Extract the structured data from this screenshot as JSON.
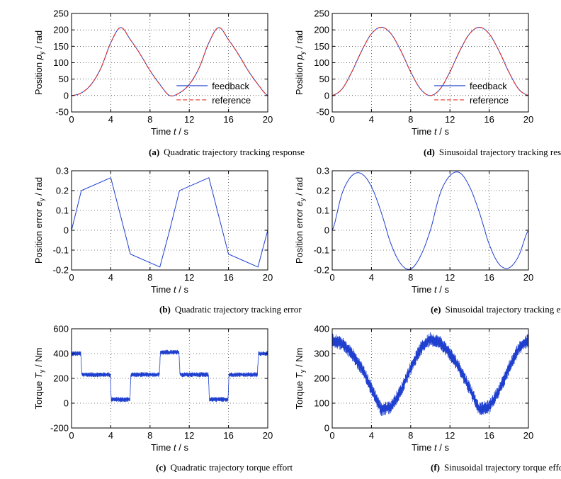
{
  "chart_data": [
    {
      "id": "a",
      "type": "line",
      "caption_letter": "(a)",
      "caption": "Quadratic trajectory tracking response",
      "xlabel_pre": "Time ",
      "xlabel_var": "t",
      "xlabel_post": " / s",
      "ylabel_pre": "Position ",
      "ylabel_var": "p",
      "ylabel_sub": "y",
      "ylabel_post": " / rad",
      "xlim": [
        0,
        20
      ],
      "ylim": [
        -50,
        250
      ],
      "xticks": [
        0,
        4,
        8,
        12,
        16,
        20
      ],
      "yticks": [
        -50,
        0,
        50,
        100,
        150,
        200,
        250
      ],
      "grid": true,
      "legend_position": "lower-right",
      "series": [
        {
          "name": "feedback",
          "color": "#1f3fcf",
          "style": "solid",
          "x": [
            0,
            1,
            2,
            3,
            4,
            5,
            6,
            7,
            8,
            9,
            10,
            11,
            12,
            13,
            14,
            15,
            16,
            17,
            18,
            19,
            20
          ],
          "y": [
            0,
            8,
            34,
            84,
            161,
            207,
            170,
            126,
            76,
            34,
            0,
            8,
            34,
            84,
            161,
            207,
            170,
            126,
            76,
            34,
            0
          ]
        },
        {
          "name": "reference",
          "color": "#e0342c",
          "style": "dashed",
          "x": [
            0,
            1,
            2,
            3,
            4,
            5,
            6,
            7,
            8,
            9,
            10,
            11,
            12,
            13,
            14,
            15,
            16,
            17,
            18,
            19,
            20
          ],
          "y": [
            0,
            8,
            34,
            84,
            161,
            207,
            170,
            126,
            76,
            34,
            0,
            8,
            34,
            84,
            161,
            207,
            170,
            126,
            76,
            34,
            0
          ]
        }
      ]
    },
    {
      "id": "d",
      "type": "line",
      "caption_letter": "(d)",
      "caption": "Sinusoidal trajectory tracking response",
      "xlabel_pre": "Time ",
      "xlabel_var": "t",
      "xlabel_post": " / s",
      "ylabel_pre": "Position ",
      "ylabel_var": "p",
      "ylabel_sub": "y",
      "ylabel_post": " / rad",
      "xlim": [
        0,
        20
      ],
      "ylim": [
        -50,
        250
      ],
      "xticks": [
        0,
        4,
        8,
        12,
        16,
        20
      ],
      "yticks": [
        -50,
        0,
        50,
        100,
        150,
        200,
        250
      ],
      "grid": true,
      "legend_position": "lower-right",
      "series": [
        {
          "name": "feedback",
          "color": "#1f3fcf",
          "style": "solid",
          "x": [
            0,
            1,
            2,
            3,
            4,
            5,
            6,
            7,
            8,
            9,
            10,
            11,
            12,
            13,
            14,
            15,
            16,
            17,
            18,
            19,
            20
          ],
          "y": [
            0,
            20,
            72,
            136,
            188,
            208,
            188,
            136,
            72,
            20,
            0,
            20,
            72,
            136,
            188,
            208,
            188,
            136,
            72,
            20,
            0
          ]
        },
        {
          "name": "reference",
          "color": "#e0342c",
          "style": "dashed",
          "x": [
            0,
            1,
            2,
            3,
            4,
            5,
            6,
            7,
            8,
            9,
            10,
            11,
            12,
            13,
            14,
            15,
            16,
            17,
            18,
            19,
            20
          ],
          "y": [
            0,
            20,
            72,
            136,
            188,
            208,
            188,
            136,
            72,
            20,
            0,
            20,
            72,
            136,
            188,
            208,
            188,
            136,
            72,
            20,
            0
          ]
        }
      ]
    },
    {
      "id": "b",
      "type": "line",
      "caption_letter": "(b)",
      "caption": "Quadratic trajectory tracking error",
      "xlabel_pre": "Time ",
      "xlabel_var": "t",
      "xlabel_post": " / s",
      "ylabel_pre": "Position error ",
      "ylabel_var": "e",
      "ylabel_sub": "y",
      "ylabel_post": " / rad",
      "xlim": [
        0,
        20
      ],
      "ylim": [
        -0.2,
        0.3
      ],
      "xticks": [
        0,
        4,
        8,
        12,
        16,
        20
      ],
      "yticks": [
        -0.2,
        -0.1,
        0,
        0.1,
        0.2,
        0.3
      ],
      "grid": true,
      "series": [
        {
          "color": "#1f3fcf",
          "style": "solid",
          "x": [
            0,
            1,
            4,
            6,
            9,
            10,
            11,
            14,
            16,
            19,
            20
          ],
          "y": [
            0,
            0.2,
            0.265,
            -0.12,
            -0.185,
            0,
            0.2,
            0.265,
            -0.12,
            -0.185,
            0
          ]
        }
      ]
    },
    {
      "id": "e",
      "type": "line",
      "caption_letter": "(e)",
      "caption": "Sinusoidal trajectory tracking error",
      "xlabel_pre": "Time ",
      "xlabel_var": "t",
      "xlabel_post": " / s",
      "ylabel_pre": "Position error ",
      "ylabel_var": "e",
      "ylabel_sub": "y",
      "ylabel_post": " / rad",
      "xlim": [
        0,
        20
      ],
      "ylim": [
        -0.2,
        0.3
      ],
      "xticks": [
        0,
        4,
        8,
        12,
        16,
        20
      ],
      "yticks": [
        -0.2,
        -0.1,
        0,
        0.1,
        0.2,
        0.3
      ],
      "grid": true,
      "series": [
        {
          "color": "#1f3fcf",
          "style": "solid",
          "x": [
            0,
            1,
            2,
            3,
            4,
            5,
            6,
            7,
            8,
            9,
            10,
            11,
            12,
            13,
            14,
            15,
            16,
            17,
            18,
            19,
            20
          ],
          "y": [
            0,
            0.185,
            0.275,
            0.285,
            0.22,
            0.09,
            -0.07,
            -0.17,
            -0.195,
            -0.13,
            0,
            0.185,
            0.275,
            0.29,
            0.22,
            0.09,
            -0.07,
            -0.17,
            -0.19,
            -0.13,
            0
          ]
        }
      ]
    },
    {
      "id": "c",
      "type": "line",
      "caption_letter": "(c)",
      "caption": "Quadratic trajectory torque effort",
      "xlabel_pre": "Time ",
      "xlabel_var": "t",
      "xlabel_post": " / s",
      "ylabel_pre": "Torque ",
      "ylabel_var": "T",
      "ylabel_sub": "y",
      "ylabel_post": " / Nm",
      "xlim": [
        0,
        20
      ],
      "ylim": [
        -200,
        600
      ],
      "xticks": [
        0,
        4,
        8,
        12,
        16,
        20
      ],
      "yticks": [
        -200,
        0,
        200,
        400,
        600
      ],
      "grid": true,
      "series": [
        {
          "color": "#1f3fcf",
          "style": "noisy-band",
          "x": [
            0,
            0.95,
            1.05,
            3.95,
            4.05,
            5.95,
            6.05,
            8.95,
            9.05,
            10.95,
            11.05,
            13.95,
            14.05,
            15.95,
            16.05,
            18.95,
            19.05,
            20
          ],
          "y": [
            400,
            400,
            230,
            230,
            30,
            30,
            230,
            230,
            410,
            410,
            230,
            230,
            30,
            30,
            230,
            230,
            400,
            400
          ],
          "band": 20
        }
      ]
    },
    {
      "id": "f",
      "type": "line",
      "caption_letter": "(f)",
      "caption": "Sinusoidal trajectory torque effort",
      "xlabel_pre": "Time ",
      "xlabel_var": "t",
      "xlabel_post": " / s",
      "ylabel_pre": "Torque ",
      "ylabel_var": "T",
      "ylabel_sub": "y",
      "ylabel_post": " / Nm",
      "xlim": [
        0,
        20
      ],
      "ylim": [
        0,
        400
      ],
      "xticks": [
        0,
        4,
        8,
        12,
        16,
        20
      ],
      "yticks": [
        0,
        100,
        200,
        300,
        400
      ],
      "grid": true,
      "series": [
        {
          "color": "#1f3fcf",
          "style": "noisy-band",
          "x": [
            0,
            1,
            2,
            3,
            4,
            5,
            6,
            7,
            8,
            9,
            10,
            11,
            12,
            13,
            14,
            15,
            16,
            17,
            18,
            19,
            20
          ],
          "y": [
            355,
            340,
            300,
            240,
            160,
            75,
            85,
            150,
            240,
            320,
            360,
            345,
            300,
            240,
            160,
            75,
            85,
            150,
            240,
            320,
            355
          ],
          "band": 28
        }
      ]
    }
  ]
}
